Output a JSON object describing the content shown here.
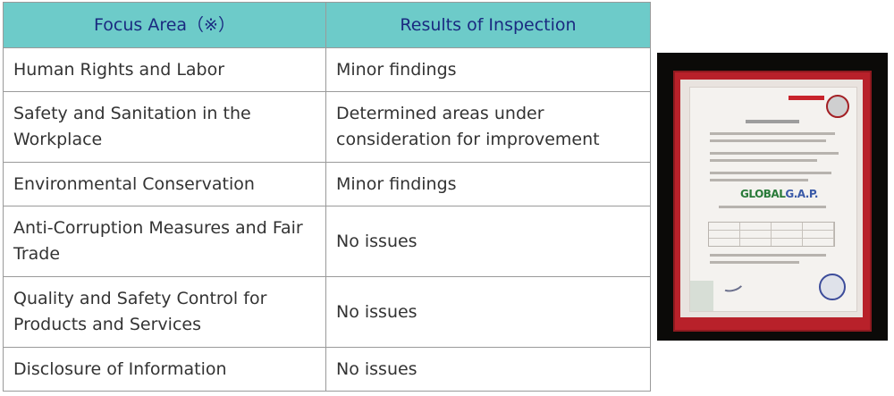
{
  "table": {
    "headers": [
      "Focus Area（※）",
      "Results of Inspection"
    ],
    "rows": [
      [
        "Human Rights and Labor",
        "Minor findings"
      ],
      [
        "Safety and Sanitation in the Workplace",
        "Determined areas under consideration for improvement"
      ],
      [
        "Environmental Conservation",
        "Minor findings"
      ],
      [
        "Anti-Corruption Measures and Fair Trade",
        "No issues"
      ],
      [
        "Quality and Safety Control for Products and Services",
        "No issues"
      ],
      [
        "Disclosure of Information",
        "No issues"
      ]
    ]
  },
  "certificate_photo": {
    "logo_text": "GLOBALG.A.P.",
    "logo_parts": [
      "GLOBAL",
      "G.A.P."
    ],
    "colors": {
      "frame": "#b8212a",
      "header": "#6dcbc9",
      "header_text": "#1a2a80"
    }
  }
}
